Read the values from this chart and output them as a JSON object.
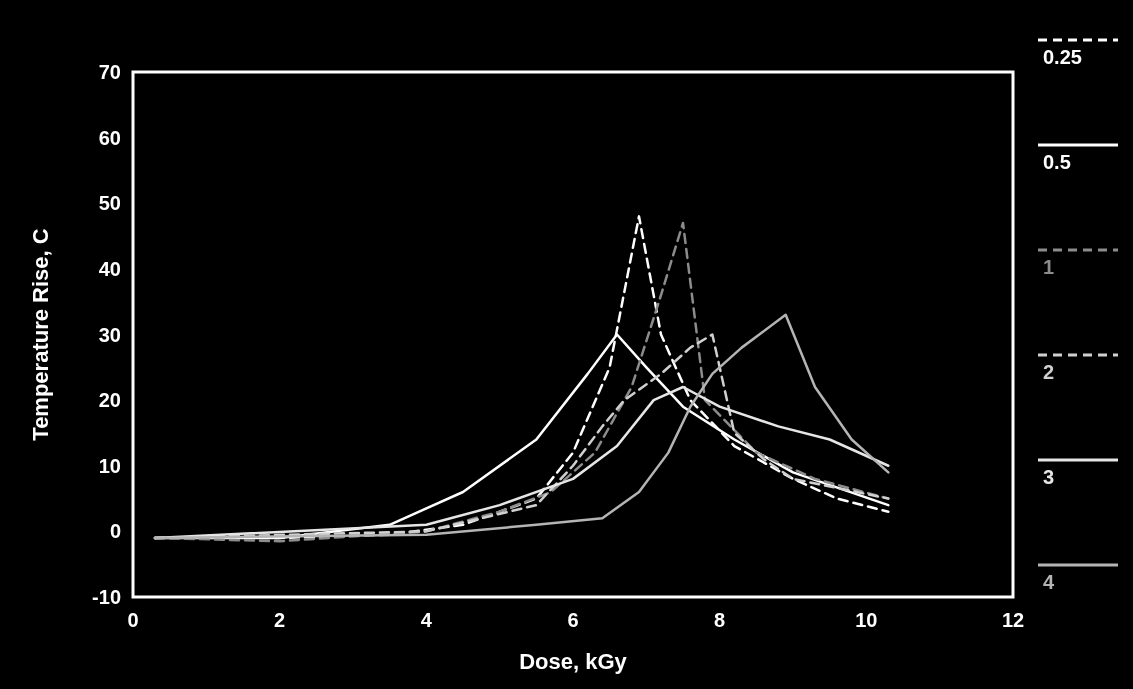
{
  "chart_data": {
    "type": "line",
    "xlabel": "Dose, kGy",
    "ylabel": "Temperature Rise, C",
    "xlim": [
      0,
      12
    ],
    "xticks": [
      0,
      2,
      4,
      6,
      8,
      10,
      12
    ],
    "ylim": [
      -10,
      70
    ],
    "yticks": [
      -10,
      0,
      10,
      20,
      30,
      40,
      50,
      60,
      70
    ],
    "grid": false,
    "legend": "right",
    "marker": "none",
    "series": [
      {
        "name": "0.25",
        "color": "#ffffff",
        "line_style": "dashed",
        "x": [
          0.3,
          2,
          3.5,
          4.5,
          5.5,
          6,
          6.5,
          6.9,
          7.2,
          7.6,
          8.2,
          9,
          9.6,
          10.3
        ],
        "values": [
          -1,
          -1,
          -0.5,
          1,
          5,
          12,
          25,
          48,
          30,
          20,
          13,
          8,
          5,
          3
        ]
      },
      {
        "name": "0.5",
        "color": "#ffffff",
        "line_style": "solid",
        "x": [
          0.3,
          2,
          3.5,
          4.5,
          5.5,
          6.2,
          6.6,
          7,
          7.5,
          8.2,
          9,
          10.3
        ],
        "values": [
          -1,
          -1,
          1,
          6,
          14,
          24,
          30,
          25,
          19,
          14,
          9,
          4
        ]
      },
      {
        "name": "1",
        "color": "#8c8c8c",
        "line_style": "dashed",
        "x": [
          0.3,
          2,
          4,
          5,
          5.7,
          6.3,
          6.8,
          7.2,
          7.5,
          7.8,
          8.5,
          9.3,
          10.3
        ],
        "values": [
          -1,
          -1.5,
          0,
          3,
          6,
          12,
          22,
          36,
          47,
          20,
          12,
          8,
          5
        ]
      },
      {
        "name": "2",
        "color": "#d0d0d0",
        "line_style": "dashed",
        "x": [
          0.3,
          4,
          5.5,
          6,
          6.4,
          6.7,
          7.2,
          7.6,
          7.9,
          8.2,
          8.6,
          9,
          10.3
        ],
        "values": [
          -1,
          0,
          4,
          10,
          16,
          20,
          24,
          28,
          30,
          15,
          11,
          8,
          5
        ]
      },
      {
        "name": "3",
        "color": "#e6e6e6",
        "line_style": "solid",
        "x": [
          0.3,
          4,
          5,
          6,
          6.6,
          7.1,
          7.5,
          8,
          8.8,
          9.5,
          10.3
        ],
        "values": [
          -1,
          1,
          4,
          8,
          13,
          20,
          22,
          19,
          16,
          14,
          10
        ]
      },
      {
        "name": "4",
        "color": "#b4b4b4",
        "line_style": "solid",
        "x": [
          0.3,
          4,
          5.5,
          6.4,
          6.9,
          7.3,
          7.6,
          7.9,
          8.3,
          8.9,
          9.3,
          9.8,
          10.3
        ],
        "values": [
          -1,
          -0.5,
          1,
          2,
          6,
          12,
          19,
          24,
          28,
          33,
          22,
          14,
          9
        ]
      }
    ]
  }
}
